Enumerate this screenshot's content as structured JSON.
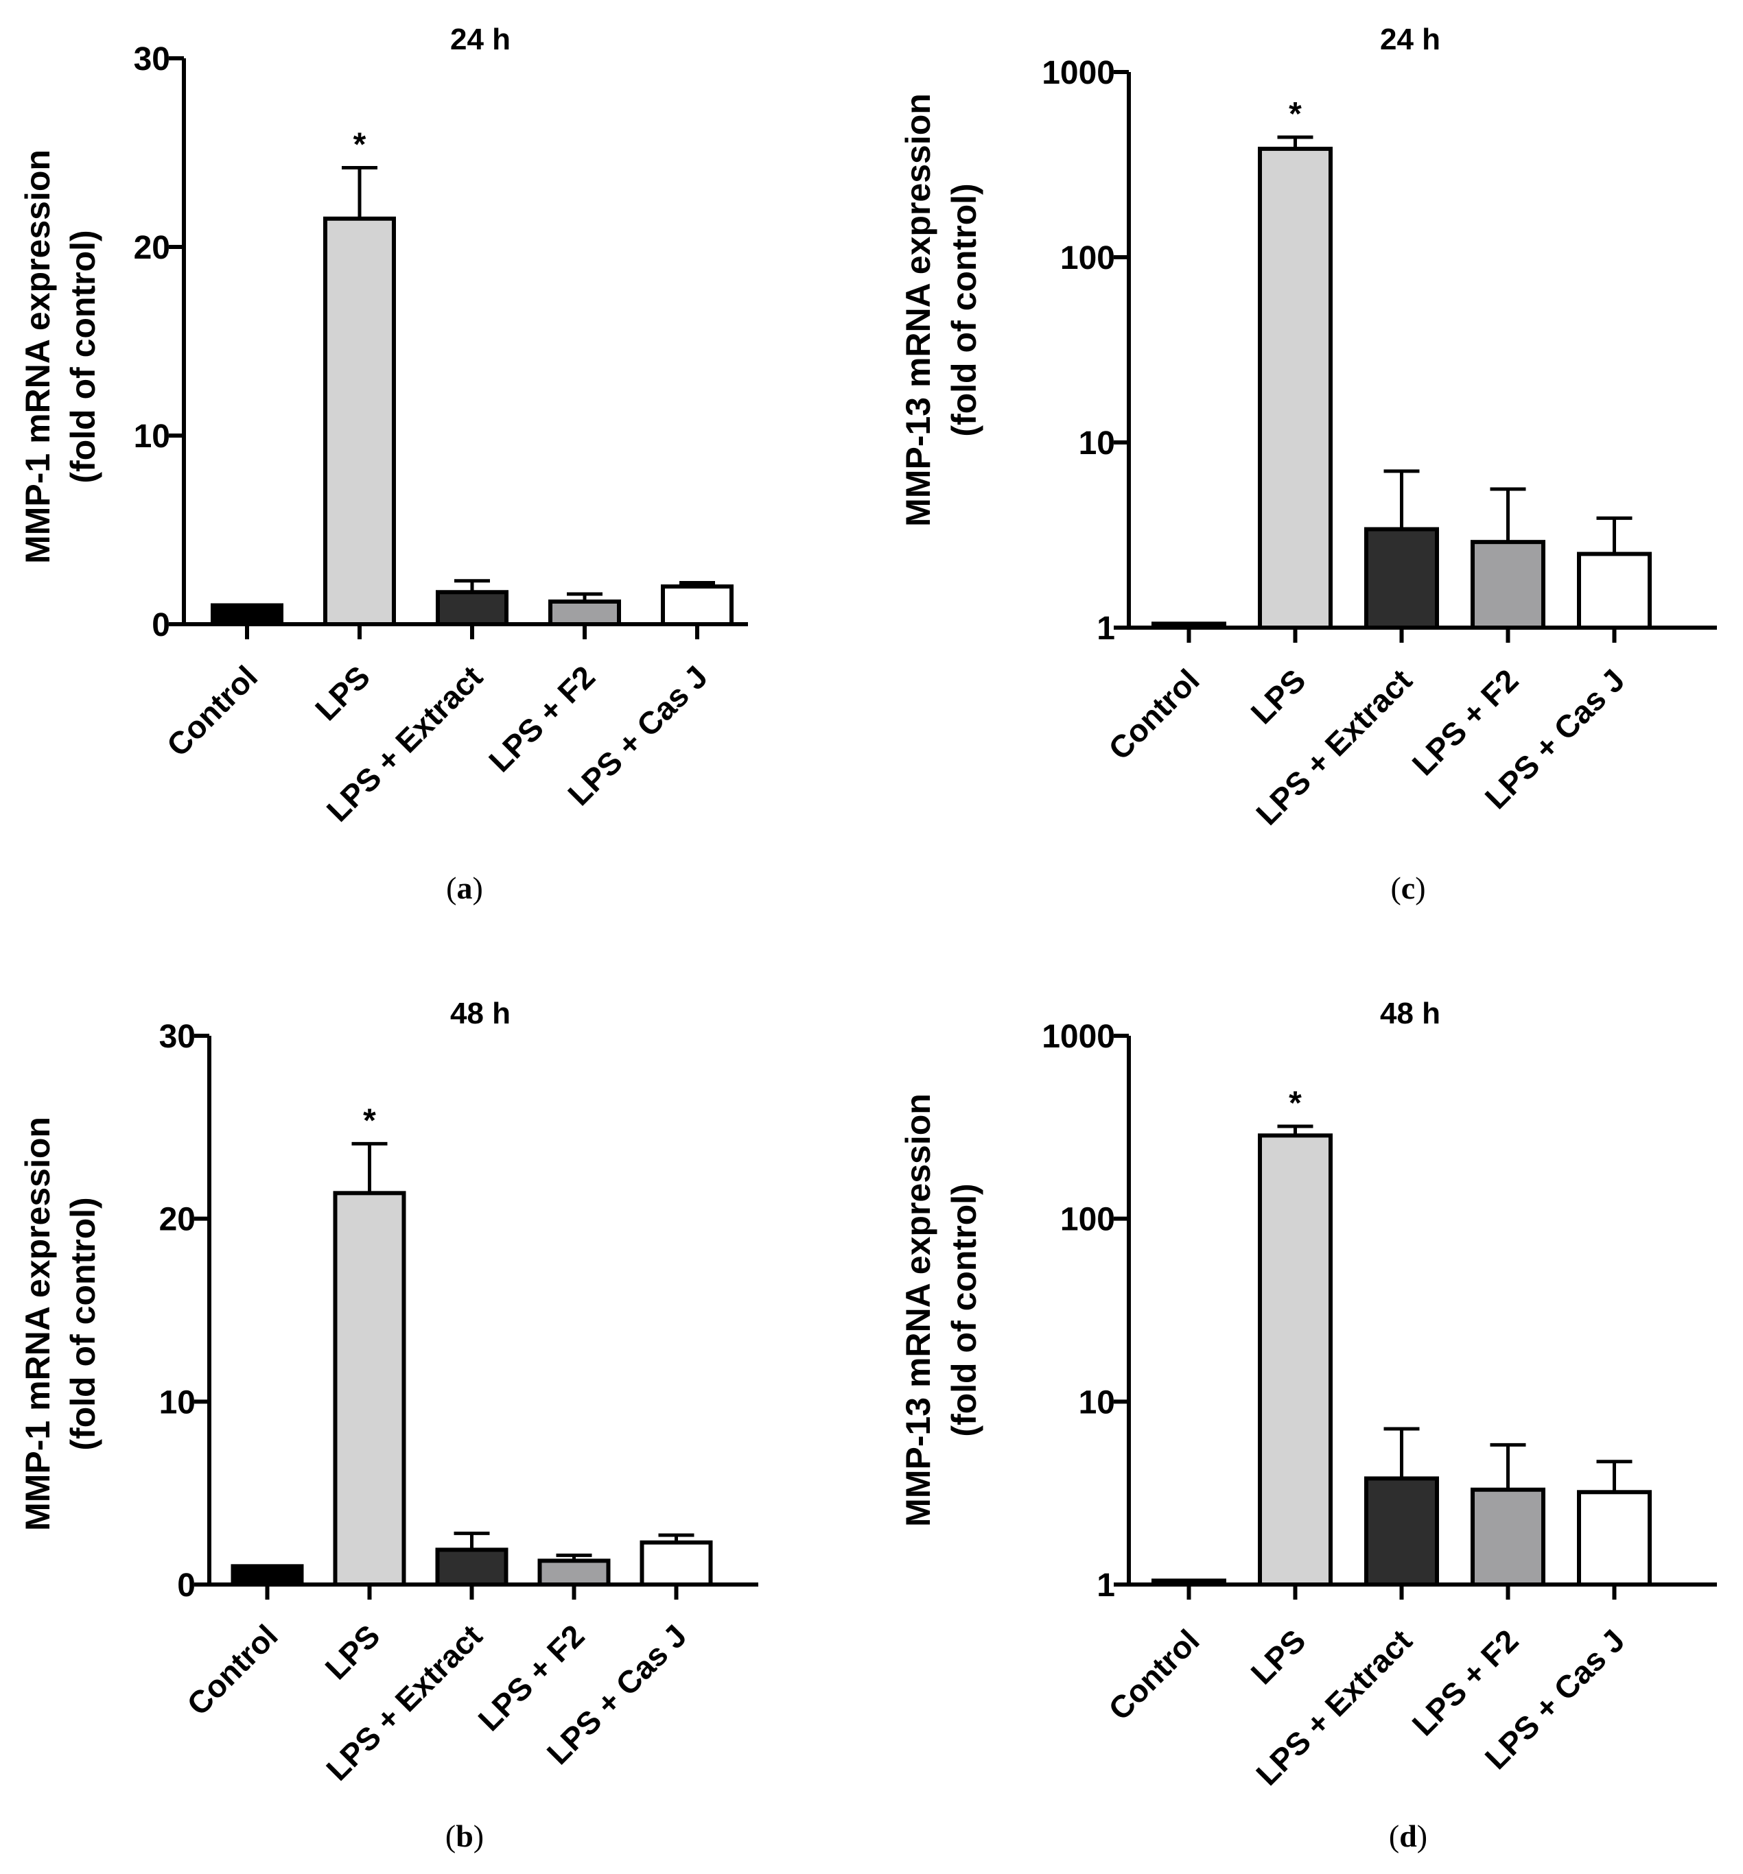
{
  "figure": {
    "bar_colors": [
      "#000000",
      "#d3d3d3",
      "#2e2e2e",
      "#a0a0a2",
      "#ffffff"
    ],
    "outline_color": "#000000"
  },
  "chart_data": [
    {
      "panel": "a",
      "type": "bar",
      "title": "24 h",
      "ylabel": [
        "MMP-1 mRNA expression",
        "(fold of control)"
      ],
      "yscale": "linear",
      "ylim": [
        0,
        30
      ],
      "yticks": [
        0,
        10,
        20,
        30
      ],
      "ytick_labels": [
        "0",
        "10",
        "20",
        "30"
      ],
      "categories": [
        "Control",
        "LPS",
        "LPS + Extract",
        "LPS + F2",
        "LPS + Cas J"
      ],
      "values": [
        1.0,
        21.5,
        1.7,
        1.2,
        2.0
      ],
      "errors": [
        0.0,
        2.7,
        0.6,
        0.4,
        0.2
      ],
      "significance": [
        "",
        "*",
        "",
        "",
        ""
      ],
      "caption_letter": "a"
    },
    {
      "panel": "b",
      "type": "bar",
      "title": "48 h",
      "ylabel": [
        "MMP-1 mRNA expression",
        "(fold of control)"
      ],
      "yscale": "linear",
      "ylim": [
        0,
        30
      ],
      "yticks": [
        0,
        10,
        20,
        30
      ],
      "ytick_labels": [
        "0",
        "10",
        "20",
        "30"
      ],
      "categories": [
        "Control",
        "LPS",
        "LPS + Extract",
        "LPS + F2",
        "LPS + Cas J"
      ],
      "values": [
        1.0,
        21.4,
        1.9,
        1.3,
        2.3
      ],
      "errors": [
        0.0,
        2.7,
        0.9,
        0.3,
        0.4
      ],
      "significance": [
        "",
        "*",
        "",
        "",
        ""
      ],
      "caption_letter": "b"
    },
    {
      "panel": "c",
      "type": "bar",
      "title": "24 h",
      "ylabel": [
        "MMP-13 mRNA expression",
        "(fold of control)"
      ],
      "yscale": "log",
      "ylim": [
        1,
        1000
      ],
      "yticks": [
        1,
        10,
        100,
        1000
      ],
      "ytick_labels": [
        "1",
        "10",
        "100",
        "1000"
      ],
      "categories": [
        "Control",
        "LPS",
        "LPS + Extract",
        "LPS + F2",
        "LPS + Cas J"
      ],
      "values": [
        1.05,
        385,
        3.4,
        2.9,
        2.5
      ],
      "errors": [
        0.0,
        60,
        3.6,
        2.7,
        1.4
      ],
      "significance": [
        "",
        "*",
        "",
        "",
        ""
      ],
      "caption_letter": "c"
    },
    {
      "panel": "d",
      "type": "bar",
      "title": "48 h",
      "ylabel": [
        "MMP-13 mRNA expression",
        "(fold of control)"
      ],
      "yscale": "log",
      "ylim": [
        1,
        1000
      ],
      "yticks": [
        1,
        10,
        100,
        1000
      ],
      "ytick_labels": [
        "1",
        "10",
        "100",
        "1000"
      ],
      "categories": [
        "Control",
        "LPS",
        "LPS + Extract",
        "LPS + F2",
        "LPS + Cas J"
      ],
      "values": [
        1.05,
        285,
        3.8,
        3.3,
        3.2
      ],
      "errors": [
        0.0,
        35,
        3.3,
        2.5,
        1.5
      ],
      "significance": [
        "",
        "*",
        "",
        "",
        ""
      ],
      "caption_letter": "d"
    }
  ]
}
